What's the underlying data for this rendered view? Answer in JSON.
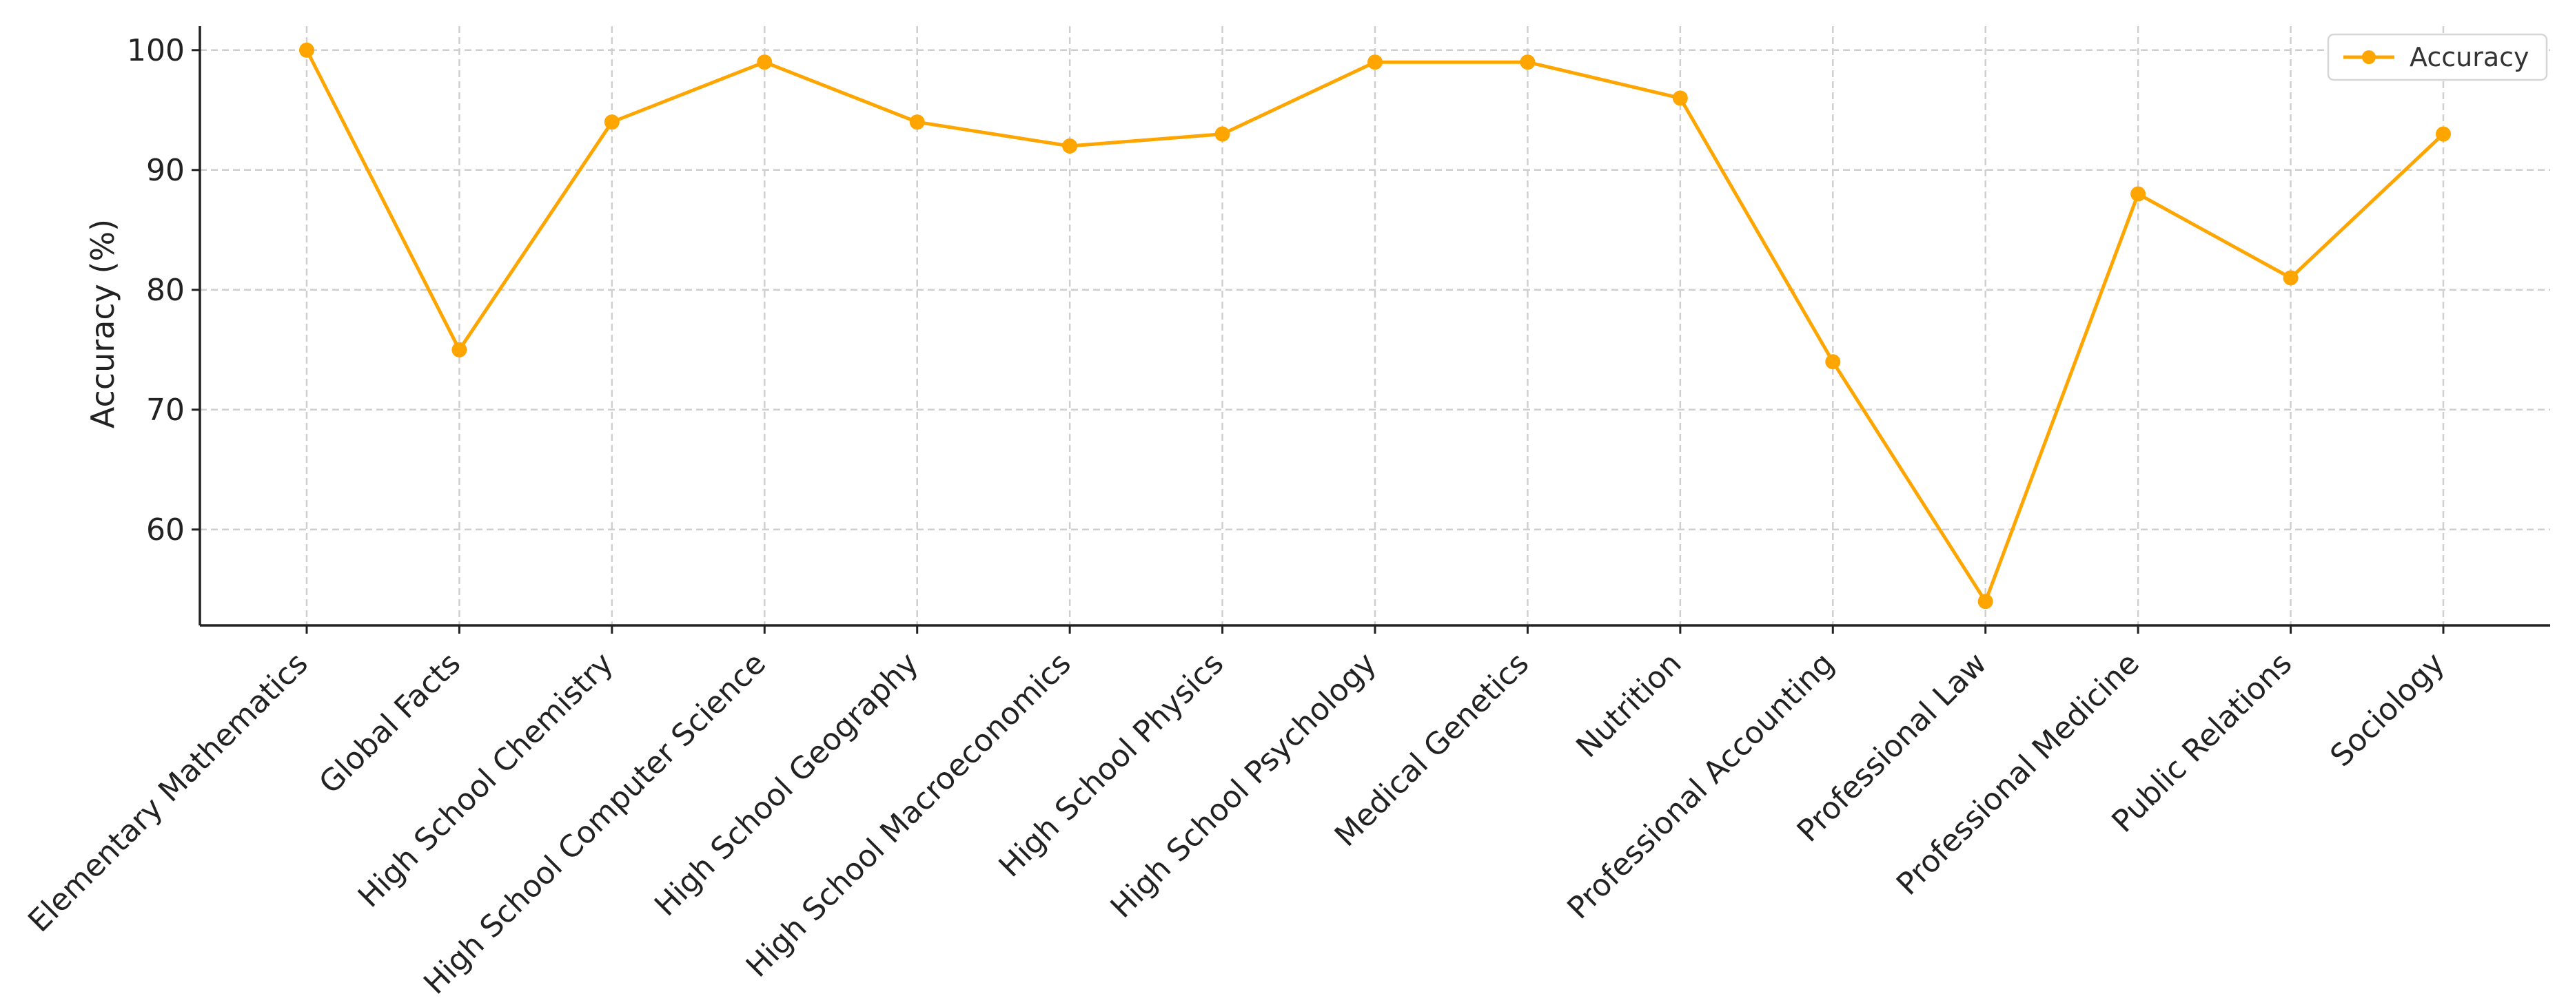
{
  "chart_data": {
    "type": "line",
    "title": "",
    "xlabel": "",
    "ylabel": "Accuracy (%)",
    "categories": [
      "Elementary Mathematics",
      "Global Facts",
      "High School Chemistry",
      "High School Computer Science",
      "High School Geography",
      "High School Macroeconomics",
      "High School Physics",
      "High School Psychology",
      "Medical Genetics",
      "Nutrition",
      "Professional Accounting",
      "Professional Law",
      "Professional Medicine",
      "Public Relations",
      "Sociology"
    ],
    "series": [
      {
        "name": "Accuracy",
        "color": "#FFA500",
        "values": [
          100,
          75,
          94,
          99,
          94,
          92,
          93,
          99,
          99,
          96,
          74,
          54,
          88,
          81,
          93
        ]
      }
    ],
    "ylim": [
      52,
      102
    ],
    "yticks": [
      60,
      70,
      80,
      90,
      100
    ],
    "grid": true,
    "legend_position": "top-right"
  }
}
